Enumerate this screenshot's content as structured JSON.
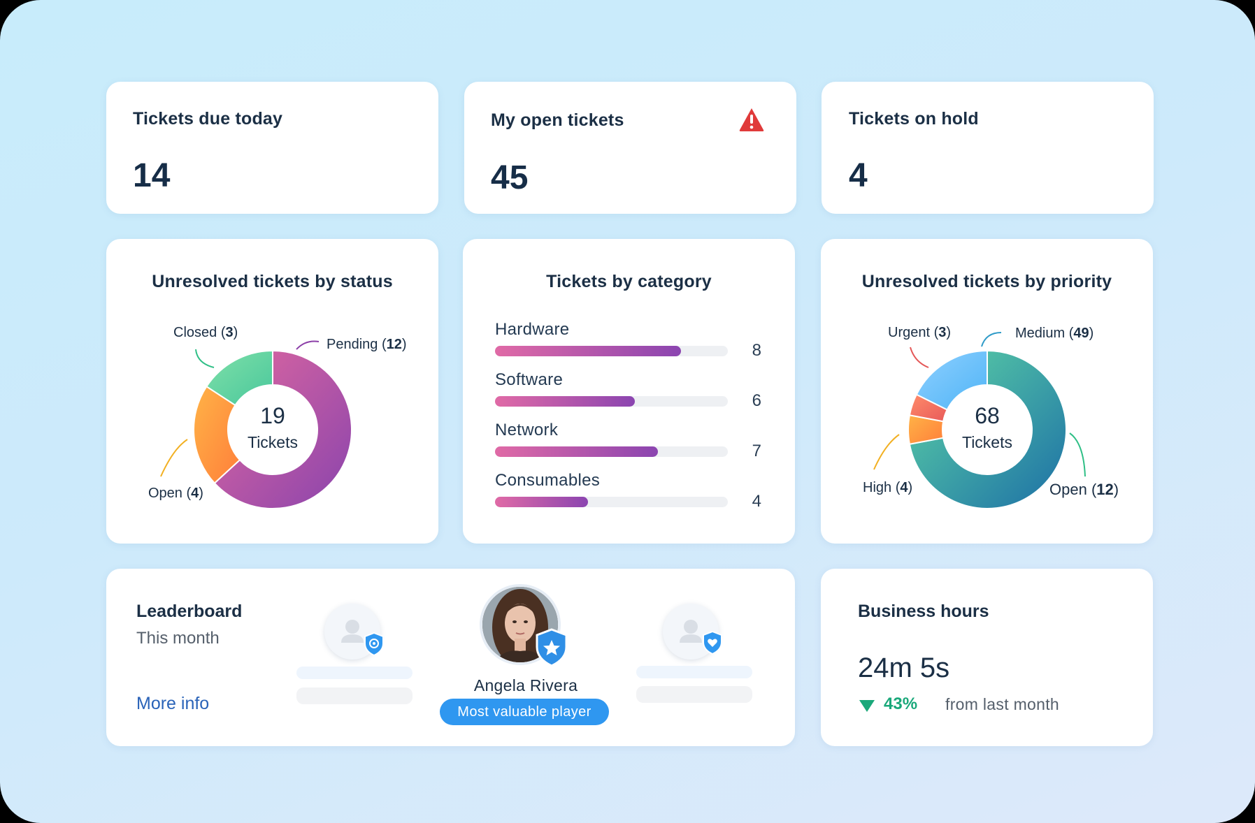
{
  "kpis": [
    {
      "title": "Tickets due today",
      "value": "14"
    },
    {
      "title": "My open tickets",
      "value": "45",
      "alert_icon": "warning-triangle-icon"
    },
    {
      "title": "Tickets on hold",
      "value": "4"
    }
  ],
  "status_chart": {
    "title": "Unresolved tickets by status",
    "center_value": "19",
    "center_label": "Tickets",
    "segments": [
      {
        "name": "Pending",
        "count": "12",
        "value": 12,
        "colors": [
          "#e0689f",
          "#8a44ad"
        ]
      },
      {
        "name": "Open",
        "count": "4",
        "value": 4,
        "colors": [
          "#ffb347",
          "#ff7f3a"
        ]
      },
      {
        "name": "Closed",
        "count": "3",
        "value": 3,
        "colors": [
          "#7fe0a8",
          "#49c79c"
        ]
      }
    ]
  },
  "category_chart": {
    "title": "Tickets by category",
    "max": 10,
    "items": [
      {
        "label": "Hardware",
        "value": 8,
        "value_text": "8"
      },
      {
        "label": "Software",
        "value": 6,
        "value_text": "6"
      },
      {
        "label": "Network",
        "value": 7,
        "value_text": "7"
      },
      {
        "label": "Consumables",
        "value": 4,
        "value_text": "4"
      }
    ]
  },
  "priority_chart": {
    "title": "Unresolved tickets by priority",
    "center_value": "68",
    "center_label": "Tickets",
    "segments": [
      {
        "name": "Medium",
        "count": "49",
        "value": 49,
        "colors": [
          "#5fd6a5",
          "#1c6fa6"
        ]
      },
      {
        "name": "High",
        "count": "4",
        "value": 4,
        "colors": [
          "#ffb347",
          "#ff7f3a"
        ]
      },
      {
        "name": "Urgent",
        "count": "3",
        "value": 3,
        "colors": [
          "#ff8c6a",
          "#e85a5a"
        ]
      },
      {
        "name": "Open",
        "count": "12",
        "value": 12,
        "colors": [
          "#8fd0ff",
          "#4fb4f6"
        ]
      }
    ]
  },
  "chart_data": [
    {
      "type": "pie",
      "title": "Unresolved tickets by status",
      "categories": [
        "Pending",
        "Open",
        "Closed"
      ],
      "values": [
        12,
        4,
        3
      ]
    },
    {
      "type": "bar",
      "title": "Tickets by category",
      "categories": [
        "Hardware",
        "Software",
        "Network",
        "Consumables"
      ],
      "values": [
        8,
        6,
        7,
        4
      ]
    },
    {
      "type": "pie",
      "title": "Unresolved tickets by priority",
      "categories": [
        "Urgent",
        "Medium",
        "High",
        "Open"
      ],
      "values": [
        3,
        49,
        4,
        12
      ]
    }
  ],
  "leaderboard": {
    "title": "Leaderboard",
    "subtitle": "This month",
    "more_info": "More info",
    "mvp_name": "Angela Rivera",
    "mvp_badge": "Most valuable player"
  },
  "business_hours": {
    "title": "Business hours",
    "value": "24m 5s",
    "change": "43%",
    "change_note": "from last month",
    "change_color": "#1aa87a"
  }
}
